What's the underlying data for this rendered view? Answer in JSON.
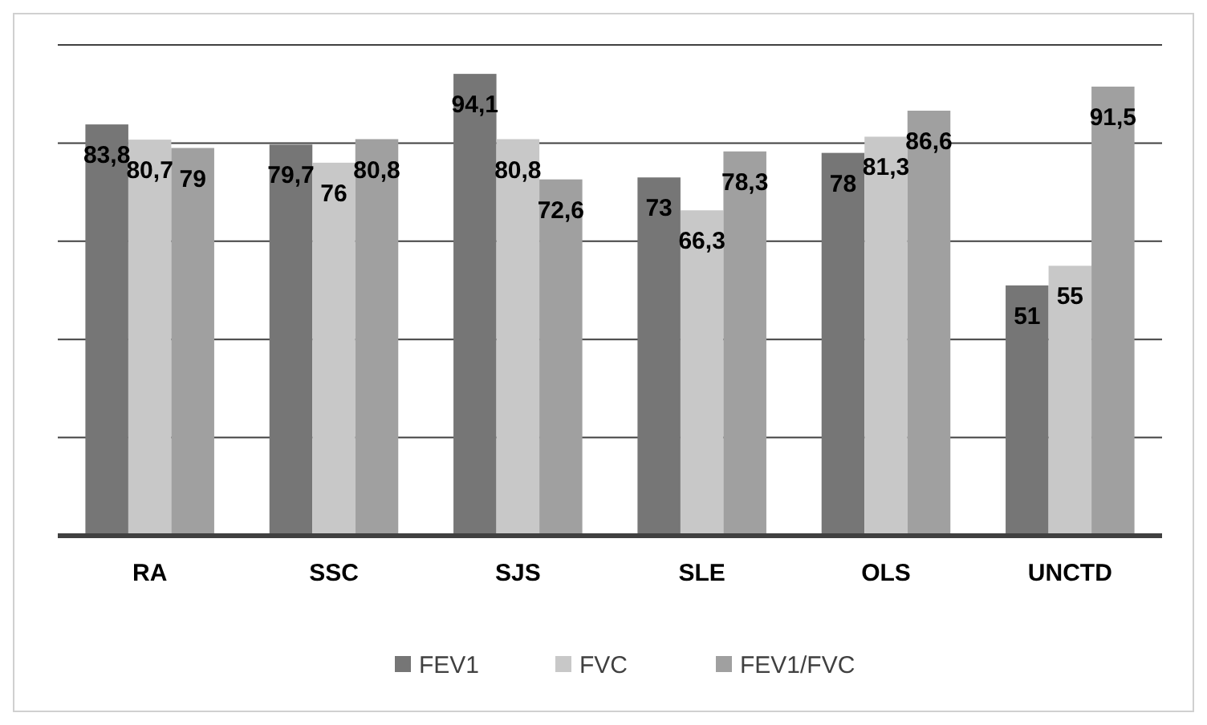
{
  "chart_data": {
    "type": "bar",
    "categories": [
      "RA",
      "SSC",
      "SJS",
      "SLE",
      "OLS",
      "UNCTD"
    ],
    "series": [
      {
        "name": "FEV1",
        "color": "#767676",
        "values": [
          83.8,
          79.7,
          94.1,
          73,
          78,
          51
        ],
        "value_labels": [
          "83,8",
          "79,7",
          "94,1",
          "73",
          "78",
          "51"
        ]
      },
      {
        "name": "FVC",
        "color": "#c8c8c8",
        "values": [
          80.7,
          76,
          80.8,
          66.3,
          81.3,
          55
        ],
        "value_labels": [
          "80,7",
          "76",
          "80,8",
          "66,3",
          "81,3",
          "55"
        ]
      },
      {
        "name": "FEV1/FVC",
        "color": "#a0a0a0",
        "values": [
          79,
          80.8,
          72.6,
          78.3,
          86.6,
          91.5
        ],
        "value_labels": [
          "79",
          "80,8",
          "72,6",
          "78,3",
          "86,6",
          "91,5"
        ]
      }
    ],
    "ylim": [
      0,
      100
    ],
    "yticks": [
      {
        "value": 0,
        "label": null
      },
      {
        "value": 20,
        "label": null
      },
      {
        "value": 40,
        "label": null
      },
      {
        "value": 60,
        "label": null
      },
      {
        "value": 80,
        "label": null
      },
      {
        "value": 100,
        "label": null
      }
    ],
    "grid": true,
    "legend": "bottom",
    "tick_labels": "x"
  }
}
